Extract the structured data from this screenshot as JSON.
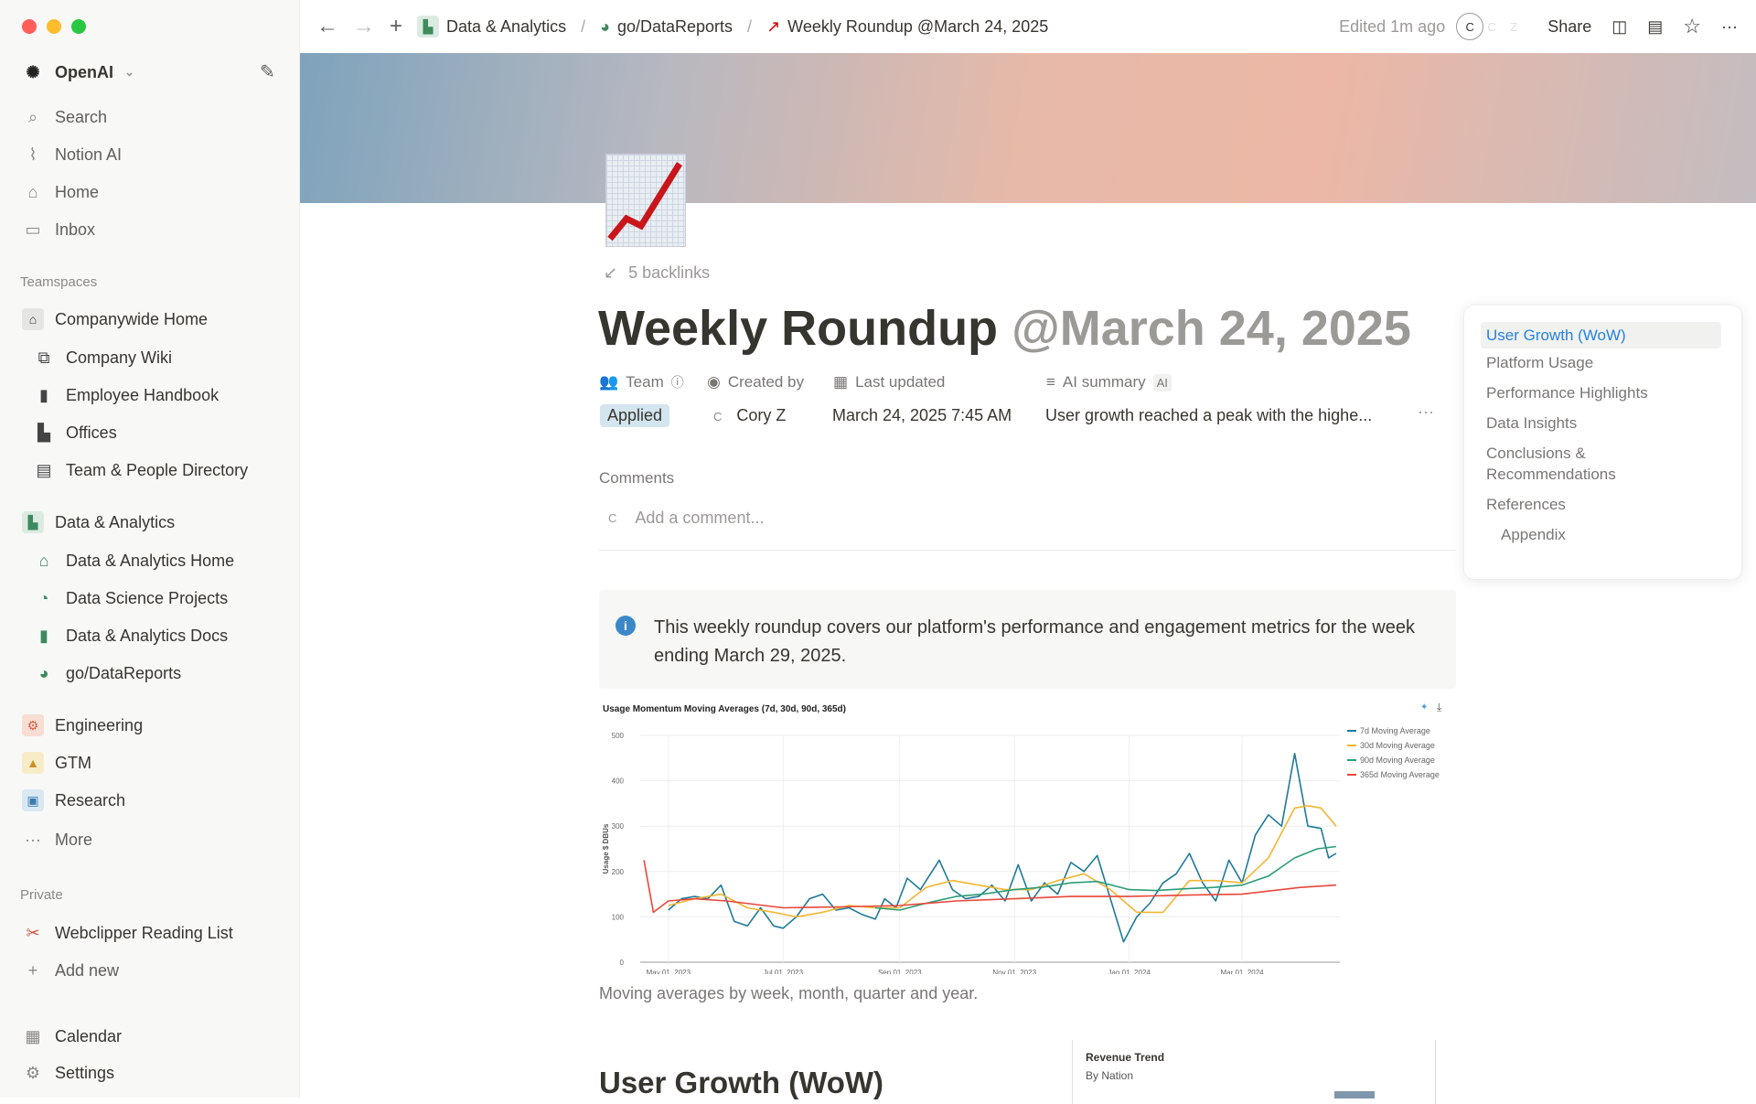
{
  "window": {
    "controls": [
      "close",
      "minimize",
      "maximize"
    ]
  },
  "sidebar": {
    "workspace": "OpenAI",
    "top": [
      {
        "label": "Search",
        "icon": "search-icon"
      },
      {
        "label": "Notion AI",
        "icon": "notion-ai-icon"
      },
      {
        "label": "Home",
        "icon": "home-icon"
      },
      {
        "label": "Inbox",
        "icon": "inbox-icon"
      }
    ],
    "teamspaces_label": "Teamspaces",
    "companywide": {
      "label": "Companywide Home",
      "children": [
        "Company Wiki",
        "Employee Handbook",
        "Offices",
        "Team & People Directory"
      ]
    },
    "data_analytics": {
      "label": "Data & Analytics",
      "children": [
        "Data & Analytics Home",
        "Data Science Projects",
        "Data & Analytics Docs",
        "go/DataReports"
      ]
    },
    "others": [
      "Engineering",
      "GTM",
      "Research"
    ],
    "more": "More",
    "private_label": "Private",
    "private": [
      "Webclipper Reading List"
    ],
    "add_new": "Add new",
    "bottom": [
      "Calendar",
      "Settings"
    ]
  },
  "topbar": {
    "breadcrumbs": [
      "Data & Analytics",
      "go/DataReports",
      "Weekly Roundup @March 24, 2025"
    ],
    "edited": "Edited 1m ago",
    "avatars": [
      "C",
      "C",
      "Z"
    ],
    "share": "Share"
  },
  "page": {
    "backlinks": "5 backlinks",
    "title": "Weekly Roundup",
    "title_mention": "@March 24, 2025",
    "properties": [
      {
        "label": "Team",
        "value": "Applied"
      },
      {
        "label": "Created by",
        "value": "Cory Z",
        "avatar": "C"
      },
      {
        "label": "Last updated",
        "value": "March 24, 2025 7:45 AM"
      },
      {
        "label": "AI summary",
        "badge": "AI",
        "value": "User growth reached a peak with the highe..."
      }
    ],
    "comments_label": "Comments",
    "comment_avatar": "C",
    "comment_placeholder": "Add a comment...",
    "callout": "This weekly roundup covers our platform's performance and engagement metrics for the week ending March 29, 2025.",
    "caption": "Moving averages by week, month, quarter and year.",
    "heading": "User Growth (WoW)",
    "revenue_card": {
      "title": "Revenue Trend",
      "subtitle": "By Nation"
    }
  },
  "toc": [
    "User Growth (WoW)",
    "Platform Usage",
    "Performance Highlights",
    "Data Insights",
    "Conclusions & Recommendations",
    "References",
    "Appendix"
  ],
  "chart_data": {
    "type": "line",
    "title": "Usage Momentum Moving Averages (7d, 30d, 90d, 365d)",
    "ylabel": "Usage $ DBUs",
    "xlabel": "",
    "ylim": [
      0,
      500
    ],
    "yticks": [
      0,
      100,
      200,
      300,
      400,
      500
    ],
    "xticks": [
      "May 01, 2023",
      "Jul 01, 2023",
      "Sep 01, 2023",
      "Nov 01, 2023",
      "Jan 01, 2024",
      "Mar 01, 2024"
    ],
    "xtick_dates": [
      "2023-05-01",
      "2023-07-01",
      "2023-09-01",
      "2023-11-01",
      "2024-01-01",
      "2024-03-01"
    ],
    "xlim": [
      "2023-04-16",
      "2024-04-22"
    ],
    "grid": true,
    "legend": "top-right",
    "series": [
      {
        "name": "7d Moving Average",
        "color": "#1f7a99",
        "points": [
          [
            "2023-05-01",
            115
          ],
          [
            "2023-05-08",
            140
          ],
          [
            "2023-05-15",
            145
          ],
          [
            "2023-05-22",
            140
          ],
          [
            "2023-05-29",
            170
          ],
          [
            "2023-06-05",
            90
          ],
          [
            "2023-06-12",
            80
          ],
          [
            "2023-06-19",
            120
          ],
          [
            "2023-06-26",
            80
          ],
          [
            "2023-07-01",
            75
          ],
          [
            "2023-07-08",
            100
          ],
          [
            "2023-07-15",
            140
          ],
          [
            "2023-07-22",
            150
          ],
          [
            "2023-07-29",
            115
          ],
          [
            "2023-08-05",
            120
          ],
          [
            "2023-08-12",
            105
          ],
          [
            "2023-08-19",
            95
          ],
          [
            "2023-08-24",
            140
          ],
          [
            "2023-08-30",
            120
          ],
          [
            "2023-09-05",
            185
          ],
          [
            "2023-09-12",
            160
          ],
          [
            "2023-09-22",
            225
          ],
          [
            "2023-09-29",
            160
          ],
          [
            "2023-10-06",
            140
          ],
          [
            "2023-10-13",
            145
          ],
          [
            "2023-10-20",
            170
          ],
          [
            "2023-10-27",
            135
          ],
          [
            "2023-11-03",
            215
          ],
          [
            "2023-11-10",
            135
          ],
          [
            "2023-11-17",
            175
          ],
          [
            "2023-11-24",
            150
          ],
          [
            "2023-12-01",
            220
          ],
          [
            "2023-12-08",
            200
          ],
          [
            "2023-12-15",
            235
          ],
          [
            "2023-12-22",
            140
          ],
          [
            "2023-12-29",
            45
          ],
          [
            "2024-01-05",
            100
          ],
          [
            "2024-01-12",
            130
          ],
          [
            "2024-01-19",
            175
          ],
          [
            "2024-01-26",
            195
          ],
          [
            "2024-02-02",
            240
          ],
          [
            "2024-02-09",
            175
          ],
          [
            "2024-02-16",
            135
          ],
          [
            "2024-02-23",
            225
          ],
          [
            "2024-03-01",
            175
          ],
          [
            "2024-03-08",
            280
          ],
          [
            "2024-03-15",
            325
          ],
          [
            "2024-03-22",
            300
          ],
          [
            "2024-03-29",
            460
          ],
          [
            "2024-04-05",
            300
          ],
          [
            "2024-04-12",
            295
          ],
          [
            "2024-04-16",
            230
          ],
          [
            "2024-04-20",
            240
          ]
        ]
      },
      {
        "name": "30d Moving Average",
        "color": "#f2b630",
        "points": [
          [
            "2023-05-01",
            125
          ],
          [
            "2023-05-15",
            140
          ],
          [
            "2023-05-29",
            150
          ],
          [
            "2023-06-12",
            120
          ],
          [
            "2023-06-26",
            110
          ],
          [
            "2023-07-08",
            100
          ],
          [
            "2023-07-22",
            110
          ],
          [
            "2023-08-05",
            125
          ],
          [
            "2023-08-19",
            120
          ],
          [
            "2023-09-01",
            120
          ],
          [
            "2023-09-15",
            165
          ],
          [
            "2023-09-29",
            180
          ],
          [
            "2023-10-13",
            170
          ],
          [
            "2023-10-27",
            160
          ],
          [
            "2023-11-10",
            160
          ],
          [
            "2023-11-24",
            180
          ],
          [
            "2023-12-08",
            195
          ],
          [
            "2023-12-22",
            160
          ],
          [
            "2024-01-05",
            110
          ],
          [
            "2024-01-19",
            110
          ],
          [
            "2024-02-02",
            180
          ],
          [
            "2024-02-16",
            180
          ],
          [
            "2024-03-01",
            175
          ],
          [
            "2024-03-15",
            230
          ],
          [
            "2024-03-29",
            340
          ],
          [
            "2024-04-05",
            345
          ],
          [
            "2024-04-12",
            340
          ],
          [
            "2024-04-20",
            300
          ]
        ]
      },
      {
        "name": "90d Moving Average",
        "color": "#2a9d78",
        "points": [
          [
            "2023-08-19",
            120
          ],
          [
            "2023-09-01",
            115
          ],
          [
            "2023-09-15",
            130
          ],
          [
            "2023-10-01",
            145
          ],
          [
            "2023-10-15",
            150
          ],
          [
            "2023-11-01",
            160
          ],
          [
            "2023-11-15",
            165
          ],
          [
            "2023-12-01",
            175
          ],
          [
            "2023-12-15",
            178
          ],
          [
            "2024-01-01",
            160
          ],
          [
            "2024-01-15",
            158
          ],
          [
            "2024-02-01",
            162
          ],
          [
            "2024-02-15",
            165
          ],
          [
            "2024-03-01",
            170
          ],
          [
            "2024-03-15",
            190
          ],
          [
            "2024-03-29",
            230
          ],
          [
            "2024-04-10",
            250
          ],
          [
            "2024-04-20",
            255
          ]
        ]
      },
      {
        "name": "365d Moving Average",
        "color": "#e8473a",
        "points": [
          [
            "2023-04-18",
            225
          ],
          [
            "2023-04-23",
            110
          ],
          [
            "2023-05-01",
            135
          ],
          [
            "2023-05-15",
            140
          ],
          [
            "2023-06-01",
            135
          ],
          [
            "2023-07-01",
            120
          ],
          [
            "2023-08-01",
            122
          ],
          [
            "2023-09-01",
            125
          ],
          [
            "2023-10-01",
            135
          ],
          [
            "2023-11-01",
            140
          ],
          [
            "2023-12-01",
            145
          ],
          [
            "2024-01-01",
            145
          ],
          [
            "2024-02-01",
            148
          ],
          [
            "2024-03-01",
            150
          ],
          [
            "2024-04-01",
            165
          ],
          [
            "2024-04-20",
            170
          ]
        ]
      }
    ]
  }
}
